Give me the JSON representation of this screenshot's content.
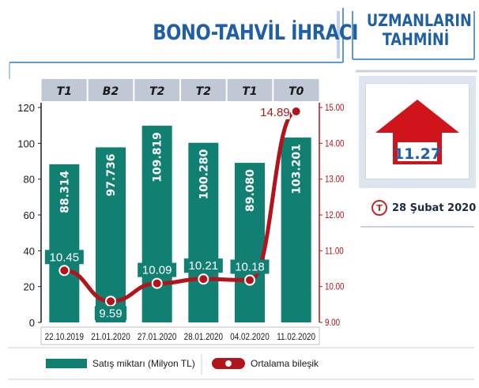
{
  "header": {
    "title": "BONO-TAHVİL İHRACI",
    "experts_title_line1": "UZMANLARIN",
    "experts_title_line2": "TAHMİNİ"
  },
  "forecast": {
    "value": "11.27",
    "direction": "up",
    "date": "28 Şubat 2020",
    "logo_letter": "T",
    "arrow_color": "#d0141c"
  },
  "legend": {
    "bars": "Satış miktarı (Milyon TL)",
    "line": "Ortalama bileşik"
  },
  "colors": {
    "bar": "#117f72",
    "line": "#b3131b",
    "left_axis": "#1a1a1a",
    "right_axis": "#b3131b",
    "header_band": "#bfc8d4",
    "title": "#1f5fa8"
  },
  "chart_data": {
    "type": "bar",
    "categories": [
      "22.10.2019",
      "21.01.2020",
      "27.01.2020",
      "28.01.2020",
      "04.02.2020",
      "11.02.2020"
    ],
    "column_codes": [
      "T1",
      "B2",
      "T2",
      "T2",
      "T1",
      "T0"
    ],
    "series": [
      {
        "name": "Satış miktarı (Milyon TL)",
        "axis": "left",
        "values": [
          88.314,
          97.736,
          109.819,
          100.28,
          89.08,
          103.201
        ],
        "labels": [
          "88.314",
          "97.736",
          "109.819",
          "100.280",
          "89.080",
          "103.201"
        ]
      },
      {
        "name": "Ortalama bileşik",
        "axis": "right",
        "type": "line",
        "values": [
          10.45,
          9.59,
          10.09,
          10.21,
          10.18,
          14.89
        ],
        "labels": [
          "10.45",
          "9.59",
          "10.09",
          "10.21",
          "10.18",
          "14.89"
        ]
      }
    ],
    "left_axis": {
      "ylim": [
        0,
        120
      ],
      "ticks": [
        "0",
        "20",
        "40",
        "60",
        "80",
        "100",
        "120"
      ]
    },
    "right_axis": {
      "ylim": [
        9,
        15
      ],
      "ticks": [
        "9.00",
        "10.00",
        "11.00",
        "12.00",
        "13.00",
        "14.00",
        "15.00"
      ]
    },
    "grid": false,
    "legend_position": "bottom"
  }
}
